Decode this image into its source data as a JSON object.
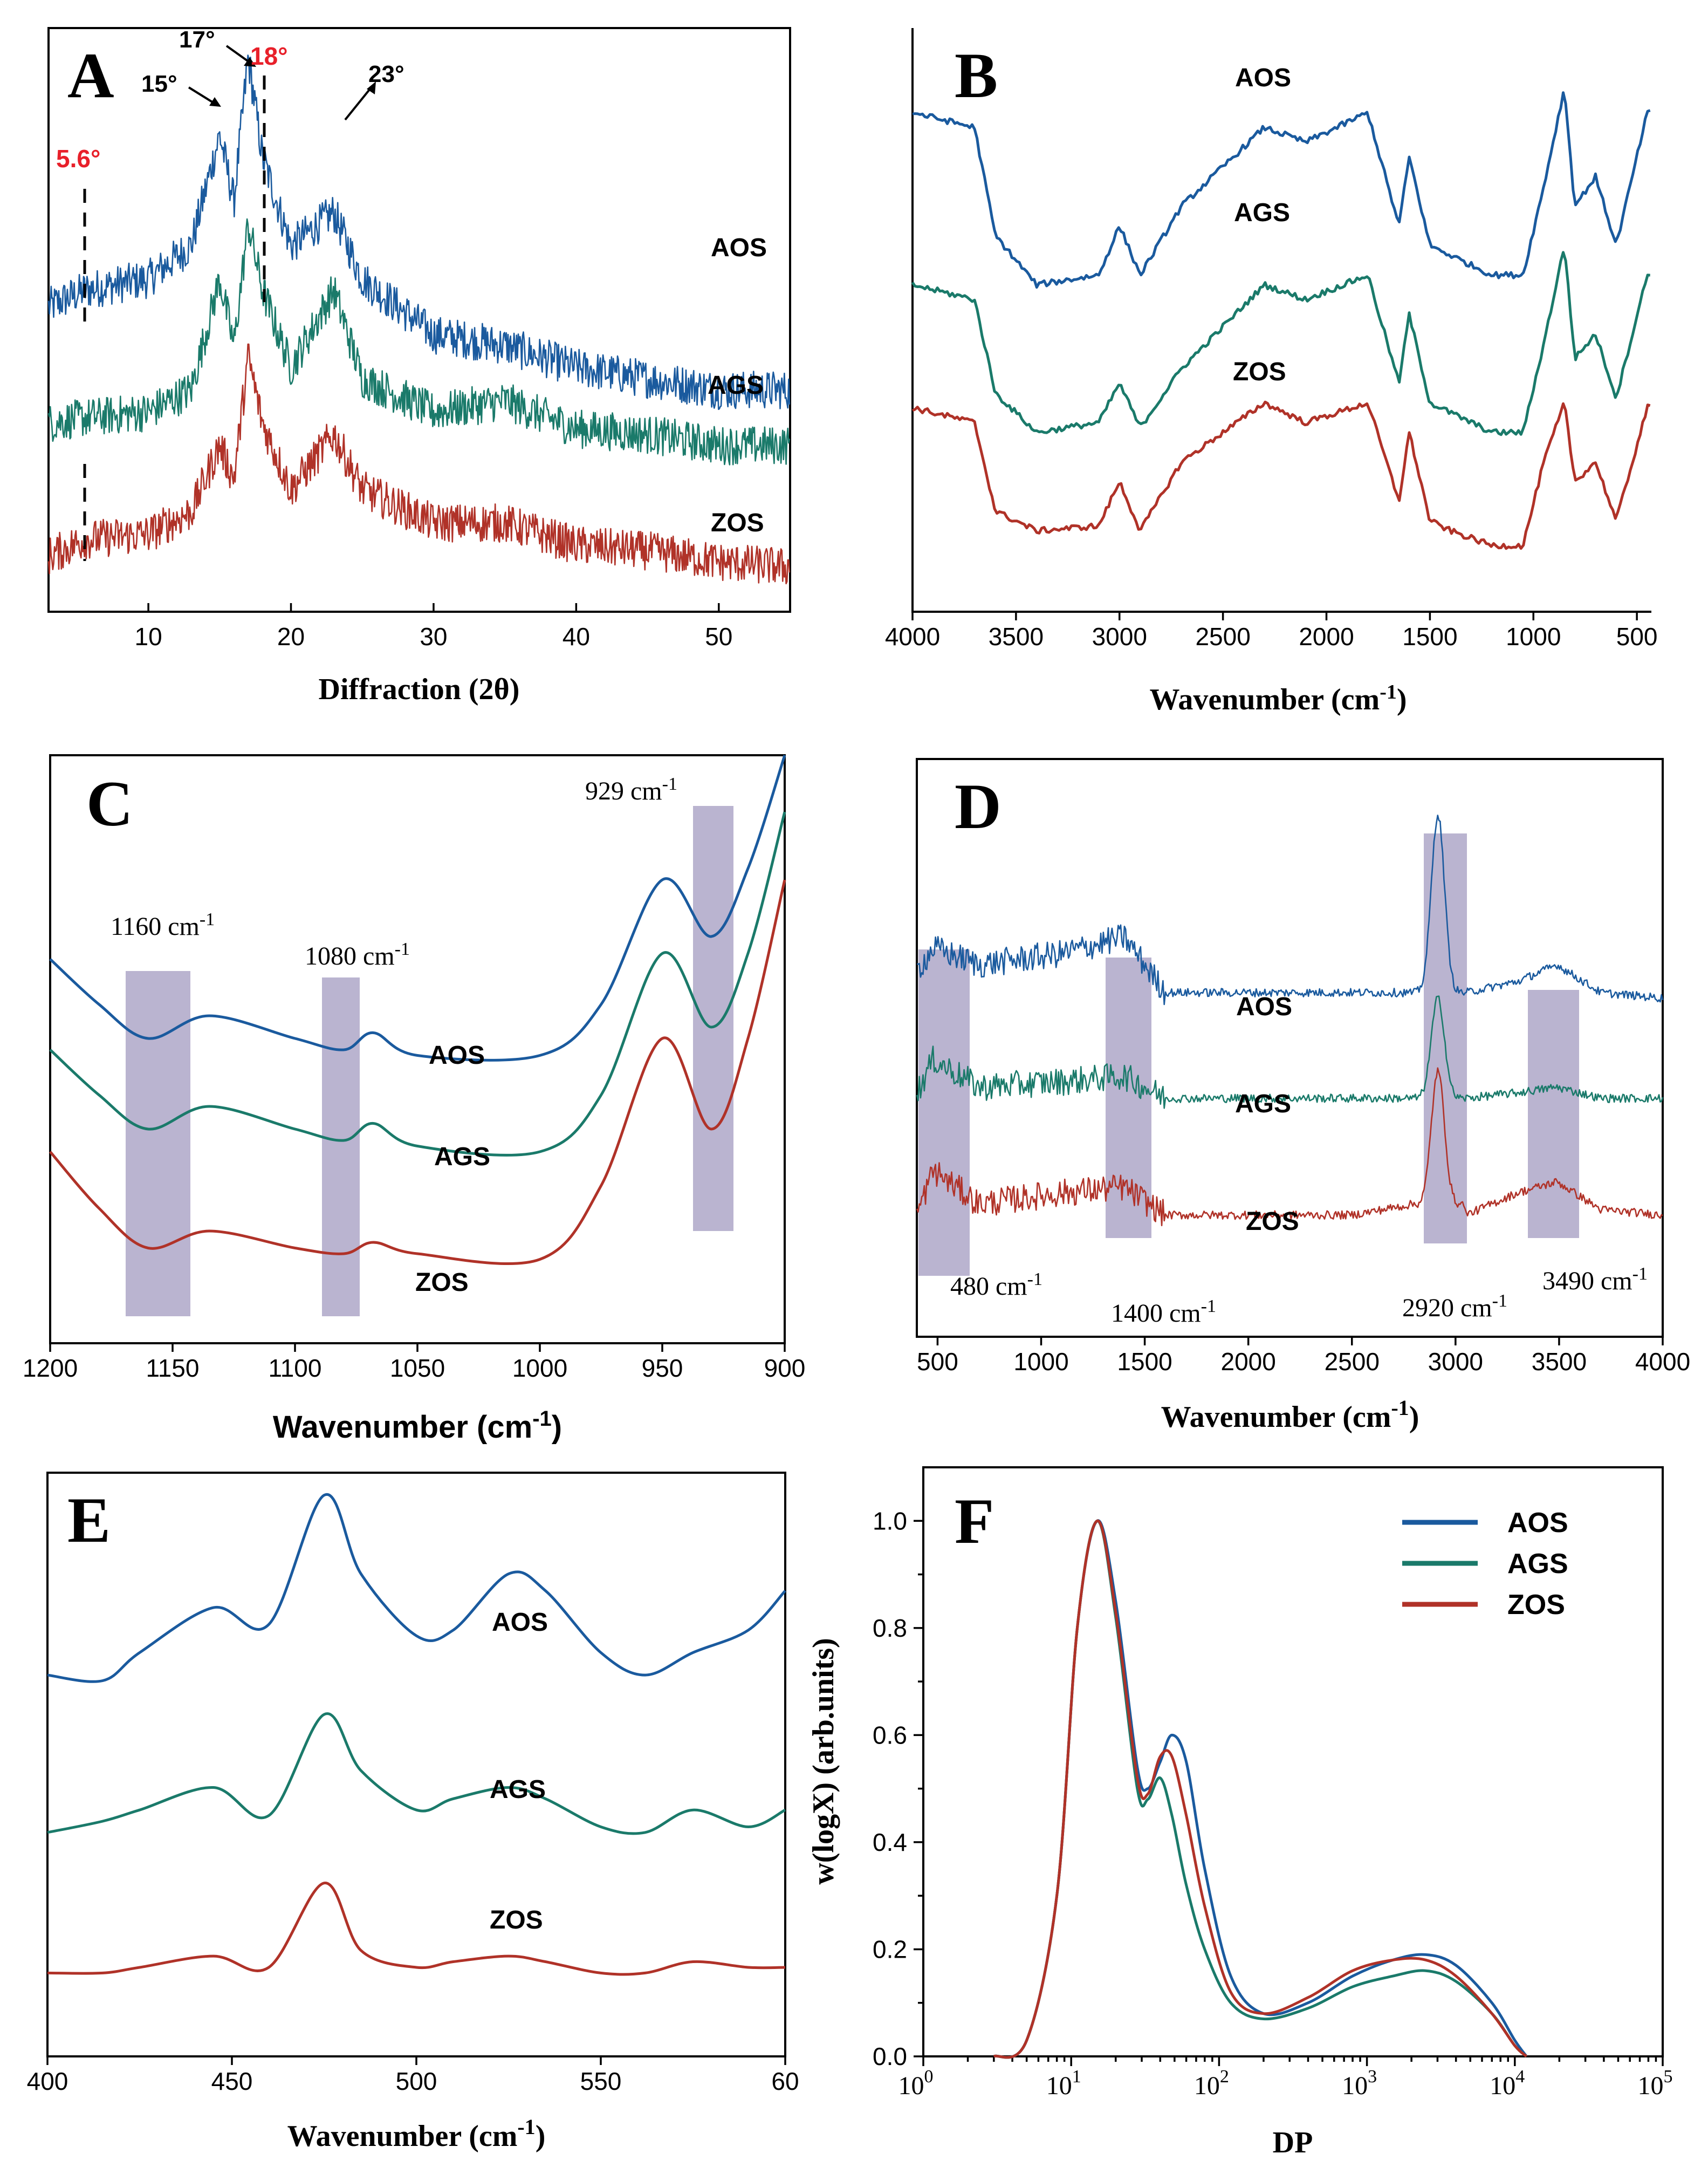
{
  "colors": {
    "AOS": "#1a5a9e",
    "AGS": "#1a7a6a",
    "ZOS": "#b03228",
    "band": "#a39bc0",
    "highlight": "#e8202a"
  },
  "panels": {
    "A": {
      "letter": "A",
      "xlabel": "Diffraction (2θ)",
      "xticks": [
        "10",
        "20",
        "30",
        "40",
        "50"
      ],
      "series": [
        "AOS",
        "AGS",
        "ZOS"
      ],
      "peaks": [
        {
          "label": "15°"
        },
        {
          "label": "17°"
        },
        {
          "label": "18°",
          "highlight": true
        },
        {
          "label": "23°"
        },
        {
          "label": "5.6°",
          "highlight": true
        }
      ]
    },
    "B": {
      "letter": "B",
      "xlabel": "Wavenumber (cm",
      "xlabel_sup": "-1",
      "xlabel_end": ")",
      "xticks": [
        "4000",
        "3500",
        "3000",
        "2500",
        "2000",
        "1500",
        "1000",
        "500"
      ],
      "series": [
        "AOS",
        "AGS",
        "ZOS"
      ]
    },
    "C": {
      "letter": "C",
      "xlabel": "Wavenumber (cm",
      "xlabel_sup": "-1",
      "xlabel_end": ")",
      "xticks": [
        "1200",
        "1150",
        "1100",
        "1050",
        "1000",
        "950",
        "900"
      ],
      "series": [
        "AOS",
        "AGS",
        "ZOS"
      ],
      "bands": [
        {
          "label": "1160 cm",
          "sup": "-1"
        },
        {
          "label": "1080 cm",
          "sup": "-1"
        },
        {
          "label": "929 cm",
          "sup": "-1"
        }
      ]
    },
    "D": {
      "letter": "D",
      "xlabel": "Wavenumber (cm",
      "xlabel_sup": "-1",
      "xlabel_end": ")",
      "xticks": [
        "500",
        "1000",
        "1500",
        "2000",
        "2500",
        "3000",
        "3500",
        "4000"
      ],
      "series": [
        "AOS",
        "AGS",
        "ZOS"
      ],
      "bands": [
        {
          "label": "480 cm",
          "sup": "-1"
        },
        {
          "label": "1400 cm",
          "sup": "-1"
        },
        {
          "label": "2920 cm",
          "sup": "-1"
        },
        {
          "label": "3490 cm",
          "sup": "-1"
        }
      ]
    },
    "E": {
      "letter": "E",
      "xlabel": "Wavenumber (cm",
      "xlabel_sup": "-1",
      "xlabel_end": ")",
      "xticks": [
        "400",
        "450",
        "500",
        "550",
        "60"
      ],
      "series": [
        "AOS",
        "AGS",
        "ZOS"
      ]
    },
    "F": {
      "letter": "F",
      "xlabel": "DP",
      "ylabel": "w(logX) (arb.units)",
      "xticks": [
        {
          "base": "10",
          "exp": "0"
        },
        {
          "base": "10",
          "exp": "1"
        },
        {
          "base": "10",
          "exp": "2"
        },
        {
          "base": "10",
          "exp": "3"
        },
        {
          "base": "10",
          "exp": "4"
        },
        {
          "base": "10",
          "exp": "5"
        }
      ],
      "yticks": [
        "0.0",
        "0.2",
        "0.4",
        "0.6",
        "0.8",
        "1.0"
      ],
      "legend": [
        "AOS",
        "AGS",
        "ZOS"
      ]
    }
  },
  "chart_data": [
    {
      "type": "line",
      "title": "A",
      "xlabel": "Diffraction (2θ)",
      "ylabel": "",
      "xlim": [
        3,
        55
      ],
      "series": [
        {
          "name": "AOS",
          "x": [
            3,
            5.6,
            10,
            13,
            15,
            16,
            17,
            18,
            20,
            23,
            25,
            30,
            35,
            40,
            45,
            50,
            55
          ],
          "y": [
            0.55,
            0.58,
            0.6,
            0.66,
            0.86,
            0.74,
            1.0,
            0.82,
            0.66,
            0.72,
            0.6,
            0.5,
            0.48,
            0.44,
            0.42,
            0.4,
            0.4
          ]
        },
        {
          "name": "AGS",
          "x": [
            3,
            5.6,
            10,
            13,
            15,
            16,
            17,
            18,
            20,
            23,
            25,
            30,
            35,
            40,
            45,
            50,
            55
          ],
          "y": [
            0.34,
            0.35,
            0.36,
            0.4,
            0.6,
            0.48,
            0.7,
            0.58,
            0.44,
            0.58,
            0.42,
            0.36,
            0.38,
            0.33,
            0.32,
            0.3,
            0.3
          ]
        },
        {
          "name": "ZOS",
          "x": [
            3,
            5.6,
            10,
            13,
            15,
            16,
            17,
            18,
            20,
            23,
            25,
            30,
            35,
            40,
            45,
            50,
            55
          ],
          "y": [
            0.1,
            0.13,
            0.14,
            0.18,
            0.3,
            0.24,
            0.46,
            0.34,
            0.22,
            0.32,
            0.22,
            0.16,
            0.16,
            0.12,
            0.11,
            0.09,
            0.08
          ]
        }
      ]
    },
    {
      "type": "line",
      "title": "B",
      "xlabel": "Wavenumber (cm-1)",
      "ylabel": "",
      "xlim": [
        4000,
        430
      ],
      "series": [
        {
          "name": "AOS",
          "x": [
            4000,
            3700,
            3600,
            3400,
            3100,
            3000,
            2900,
            2700,
            2300,
            2100,
            1800,
            1650,
            1600,
            1500,
            1400,
            1200,
            1050,
            950,
            850,
            800,
            700,
            600,
            450
          ],
          "y": [
            0.85,
            0.82,
            0.6,
            0.5,
            0.52,
            0.62,
            0.52,
            0.66,
            0.82,
            0.79,
            0.85,
            0.62,
            0.76,
            0.58,
            0.56,
            0.52,
            0.52,
            0.7,
            0.9,
            0.66,
            0.72,
            0.58,
            0.85
          ]
        },
        {
          "name": "AGS",
          "x": [
            4000,
            3700,
            3600,
            3400,
            3100,
            3000,
            2900,
            2700,
            2300,
            2100,
            1800,
            1650,
            1600,
            1500,
            1400,
            1200,
            1050,
            950,
            850,
            800,
            700,
            600,
            450
          ],
          "y": [
            0.5,
            0.47,
            0.28,
            0.2,
            0.22,
            0.3,
            0.21,
            0.33,
            0.5,
            0.47,
            0.52,
            0.3,
            0.44,
            0.26,
            0.24,
            0.2,
            0.2,
            0.38,
            0.58,
            0.35,
            0.4,
            0.27,
            0.52
          ]
        },
        {
          "name": "ZOS",
          "x": [
            4000,
            3700,
            3600,
            3400,
            3100,
            3000,
            2900,
            2700,
            2300,
            2100,
            1800,
            1650,
            1600,
            1500,
            1400,
            1200,
            1050,
            950,
            850,
            800,
            700,
            600,
            450
          ],
          "y": [
            0.25,
            0.22,
            0.04,
            0.0,
            0.01,
            0.1,
            0.0,
            0.14,
            0.26,
            0.22,
            0.26,
            0.06,
            0.2,
            0.02,
            0.0,
            -0.03,
            -0.03,
            0.14,
            0.26,
            0.1,
            0.14,
            0.02,
            0.25
          ]
        }
      ]
    },
    {
      "type": "line",
      "title": "C",
      "xlabel": "Wavenumber (cm-1)",
      "ylabel": "",
      "xlim": [
        1200,
        900
      ],
      "series": [
        {
          "name": "AOS",
          "x": [
            1200,
            1180,
            1160,
            1135,
            1100,
            1080,
            1068,
            1050,
            1000,
            975,
            950,
            930,
            915,
            900
          ],
          "y": [
            0.64,
            0.56,
            0.5,
            0.54,
            0.5,
            0.48,
            0.51,
            0.47,
            0.47,
            0.56,
            0.78,
            0.68,
            0.8,
            1.0
          ]
        },
        {
          "name": "AGS",
          "x": [
            1200,
            1180,
            1160,
            1135,
            1100,
            1080,
            1068,
            1050,
            1000,
            975,
            950,
            930,
            915,
            900
          ],
          "y": [
            0.48,
            0.4,
            0.34,
            0.38,
            0.34,
            0.32,
            0.35,
            0.31,
            0.3,
            0.4,
            0.65,
            0.52,
            0.65,
            0.9
          ]
        },
        {
          "name": "ZOS",
          "x": [
            1200,
            1180,
            1160,
            1135,
            1100,
            1080,
            1068,
            1050,
            1000,
            975,
            950,
            930,
            915,
            900
          ],
          "y": [
            0.3,
            0.2,
            0.13,
            0.16,
            0.13,
            0.12,
            0.14,
            0.12,
            0.11,
            0.24,
            0.5,
            0.34,
            0.5,
            0.78
          ]
        }
      ]
    },
    {
      "type": "line",
      "title": "D",
      "xlabel": "Wavenumber (cm-1)",
      "ylabel": "",
      "xlim": [
        400,
        4000
      ],
      "series": [
        {
          "name": "AOS",
          "x": [
            400,
            480,
            700,
            1100,
            1400,
            1600,
            2500,
            2800,
            2920,
            3050,
            3300,
            3490,
            3700,
            4000
          ],
          "y": [
            0.62,
            0.66,
            0.63,
            0.65,
            0.68,
            0.58,
            0.58,
            0.58,
            0.9,
            0.58,
            0.6,
            0.63,
            0.58,
            0.57
          ]
        },
        {
          "name": "AGS",
          "x": [
            400,
            480,
            700,
            1100,
            1400,
            1600,
            2500,
            2800,
            2920,
            3050,
            3300,
            3490,
            3700,
            4000
          ],
          "y": [
            0.4,
            0.46,
            0.41,
            0.42,
            0.43,
            0.39,
            0.39,
            0.39,
            0.57,
            0.39,
            0.4,
            0.41,
            0.39,
            0.39
          ]
        },
        {
          "name": "ZOS",
          "x": [
            400,
            480,
            700,
            1100,
            1400,
            1600,
            2500,
            2800,
            2920,
            3050,
            3300,
            3490,
            3700,
            4000
          ],
          "y": [
            0.18,
            0.26,
            0.2,
            0.22,
            0.23,
            0.18,
            0.18,
            0.2,
            0.42,
            0.18,
            0.22,
            0.24,
            0.19,
            0.18
          ]
        }
      ]
    },
    {
      "type": "line",
      "title": "E",
      "xlabel": "Wavenumber (cm-1)",
      "ylabel": "",
      "xlim": [
        400,
        600
      ],
      "series": [
        {
          "name": "AOS",
          "x": [
            400,
            415,
            425,
            445,
            460,
            475,
            485,
            500,
            510,
            525,
            535,
            550,
            562,
            575,
            590,
            600
          ],
          "y": [
            0.64,
            0.63,
            0.68,
            0.76,
            0.73,
            0.96,
            0.82,
            0.71,
            0.72,
            0.82,
            0.79,
            0.68,
            0.64,
            0.68,
            0.72,
            0.79
          ]
        },
        {
          "name": "AGS",
          "x": [
            400,
            415,
            425,
            445,
            460,
            475,
            485,
            500,
            510,
            525,
            535,
            550,
            562,
            575,
            590,
            600
          ],
          "y": [
            0.36,
            0.38,
            0.4,
            0.44,
            0.39,
            0.57,
            0.47,
            0.4,
            0.42,
            0.44,
            0.42,
            0.37,
            0.36,
            0.4,
            0.37,
            0.4
          ]
        },
        {
          "name": "ZOS",
          "x": [
            400,
            415,
            425,
            445,
            460,
            475,
            485,
            500,
            510,
            525,
            535,
            550,
            562,
            575,
            590,
            600
          ],
          "y": [
            0.11,
            0.11,
            0.12,
            0.14,
            0.12,
            0.27,
            0.15,
            0.12,
            0.13,
            0.14,
            0.13,
            0.11,
            0.11,
            0.13,
            0.12,
            0.12
          ]
        }
      ]
    },
    {
      "type": "line",
      "title": "F",
      "xlabel": "DP",
      "ylabel": "w(logX) (arb.units)",
      "xscale": "log",
      "xlim": [
        1,
        100000
      ],
      "ylim": [
        0,
        1.1
      ],
      "series": [
        {
          "name": "AOS",
          "x": [
            3,
            5,
            8,
            11,
            15,
            20,
            28,
            33,
            40,
            48,
            60,
            80,
            120,
            200,
            400,
            800,
            1500,
            2500,
            4000,
            7000,
            10000,
            12000
          ],
          "y": [
            0,
            0.03,
            0.3,
            0.8,
            1.0,
            0.85,
            0.54,
            0.5,
            0.55,
            0.6,
            0.55,
            0.35,
            0.15,
            0.08,
            0.1,
            0.15,
            0.18,
            0.19,
            0.17,
            0.1,
            0.03,
            0
          ]
        },
        {
          "name": "AGS",
          "x": [
            3,
            5,
            8,
            11,
            15,
            20,
            28,
            33,
            40,
            48,
            60,
            80,
            120,
            200,
            400,
            800,
            1500,
            2500,
            4000,
            7000,
            10000,
            12000
          ],
          "y": [
            0,
            0.03,
            0.3,
            0.8,
            1.0,
            0.82,
            0.5,
            0.48,
            0.52,
            0.45,
            0.32,
            0.2,
            0.1,
            0.07,
            0.09,
            0.13,
            0.15,
            0.16,
            0.14,
            0.08,
            0.02,
            0
          ]
        },
        {
          "name": "ZOS",
          "x": [
            3,
            5,
            8,
            11,
            15,
            20,
            28,
            33,
            40,
            48,
            60,
            80,
            120,
            200,
            400,
            800,
            1500,
            2500,
            4000,
            7000,
            10000,
            12000
          ],
          "y": [
            0,
            0.03,
            0.3,
            0.8,
            1.0,
            0.83,
            0.52,
            0.49,
            0.56,
            0.56,
            0.45,
            0.28,
            0.12,
            0.08,
            0.11,
            0.16,
            0.18,
            0.18,
            0.15,
            0.08,
            0.02,
            0
          ]
        }
      ],
      "legend_position": "top-right"
    }
  ]
}
